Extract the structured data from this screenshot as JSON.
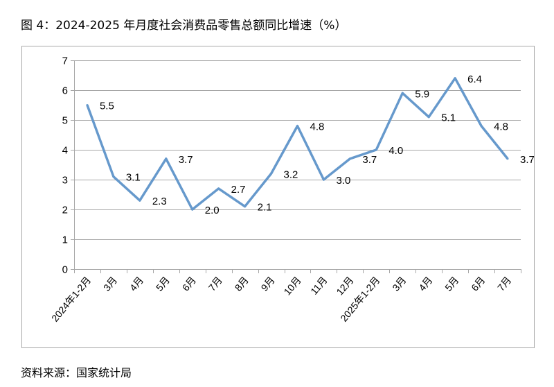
{
  "title": "图 4：2024-2025 年月度社会消费品零售总额同比增速（%）",
  "source": "资料来源：国家统计局",
  "chart_data": {
    "type": "line",
    "title": "图 4：2024-2025 年月度社会消费品零售总额同比增速（%）",
    "xlabel": "",
    "ylabel": "",
    "categories": [
      "2024年1-2月",
      "3月",
      "4月",
      "5月",
      "6月",
      "7月",
      "8月",
      "9月",
      "10月",
      "11月",
      "12月",
      "2025年1-2月",
      "3月",
      "4月",
      "5月",
      "6月",
      "7月"
    ],
    "values": [
      5.5,
      3.1,
      2.3,
      3.7,
      2.0,
      2.7,
      2.1,
      3.2,
      4.8,
      3.0,
      3.7,
      4.0,
      5.9,
      5.1,
      6.4,
      4.8,
      3.7
    ],
    "data_labels": [
      "5.5",
      "3.1",
      "2.3",
      "3.7",
      "2.0",
      "2.7",
      "2.1",
      "3.2",
      "4.8",
      "3.0",
      "3.7",
      "4.0",
      "5.9",
      "5.1",
      "6.4",
      "4.8",
      "3.7"
    ],
    "ylim": [
      0,
      7
    ],
    "yticks": [
      "0",
      "1",
      "2",
      "3",
      "4",
      "5",
      "6",
      "7"
    ],
    "grid": true,
    "legend": "none",
    "line_color": "#6699CC",
    "grid_color": "#A6A6A6"
  }
}
